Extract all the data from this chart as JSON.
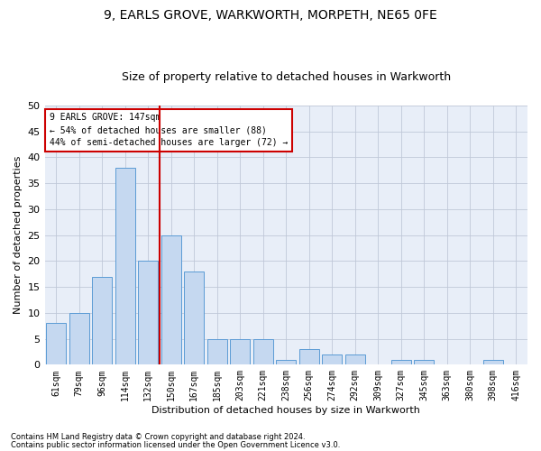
{
  "title1": "9, EARLS GROVE, WARKWORTH, MORPETH, NE65 0FE",
  "title2": "Size of property relative to detached houses in Warkworth",
  "xlabel": "Distribution of detached houses by size in Warkworth",
  "ylabel": "Number of detached properties",
  "categories": [
    "61sqm",
    "79sqm",
    "96sqm",
    "114sqm",
    "132sqm",
    "150sqm",
    "167sqm",
    "185sqm",
    "203sqm",
    "221sqm",
    "238sqm",
    "256sqm",
    "274sqm",
    "292sqm",
    "309sqm",
    "327sqm",
    "345sqm",
    "363sqm",
    "380sqm",
    "398sqm",
    "416sqm"
  ],
  "values": [
    8,
    10,
    17,
    38,
    20,
    25,
    18,
    5,
    5,
    5,
    1,
    3,
    2,
    2,
    0,
    1,
    1,
    0,
    0,
    1,
    0
  ],
  "bar_color": "#c5d8f0",
  "bar_edge_color": "#5b9bd5",
  "reference_line_x": 4.5,
  "annotation_line1": "9 EARLS GROVE: 147sqm",
  "annotation_line2": "← 54% of detached houses are smaller (88)",
  "annotation_line3": "44% of semi-detached houses are larger (72) →",
  "annotation_box_color": "#cc0000",
  "ylim": [
    0,
    50
  ],
  "yticks": [
    0,
    5,
    10,
    15,
    20,
    25,
    30,
    35,
    40,
    45,
    50
  ],
  "grid_color": "#c0c8d8",
  "footnote1": "Contains HM Land Registry data © Crown copyright and database right 2024.",
  "footnote2": "Contains public sector information licensed under the Open Government Licence v3.0.",
  "title1_fontsize": 10,
  "title2_fontsize": 9,
  "bar_width": 0.85,
  "fig_bg": "#ffffff",
  "ax_bg": "#e8eef8"
}
